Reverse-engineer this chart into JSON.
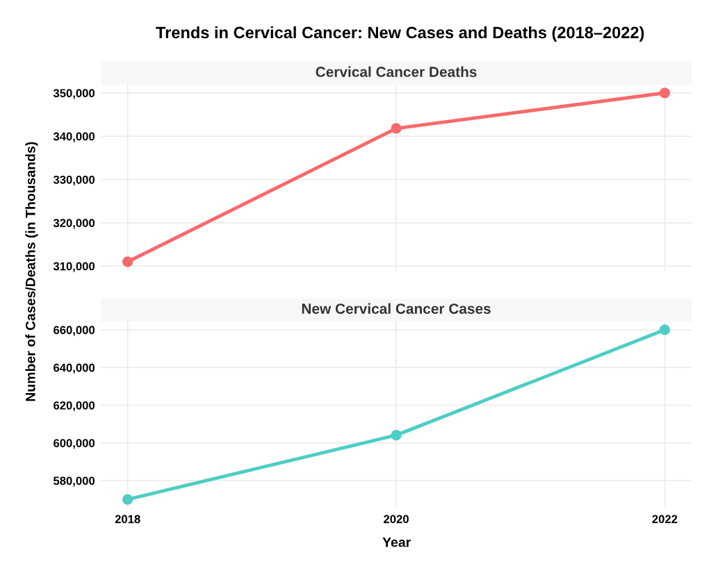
{
  "chart_data": [
    {
      "type": "line",
      "title": "Trends in Cervical Cancer: New Cases and Deaths (2018–2022)",
      "subtitle": "Cervical Cancer Deaths",
      "ylabel": "Number of Cases/Deaths (in Thousands)",
      "x": [
        2018,
        2020,
        2022
      ],
      "series": [
        {
          "color": "#f8696b",
          "values": [
            311000,
            341800,
            350000
          ]
        }
      ],
      "xlim": [
        2017.8,
        2022.2
      ],
      "xticks": [
        2018,
        2020,
        2022
      ],
      "ylim": [
        308900,
        351900
      ],
      "yticks": [
        {
          "value": 310000,
          "label": "310,000"
        },
        {
          "value": 320000,
          "label": "320,000"
        },
        {
          "value": 330000,
          "label": "330,000"
        },
        {
          "value": 340000,
          "label": "340,000"
        },
        {
          "value": 350000,
          "label": "350,000"
        }
      ],
      "tick_labels": "y",
      "grid": true,
      "marker": "circle",
      "line_style": "solid"
    },
    {
      "type": "line",
      "subtitle": "New Cervical Cancer Cases",
      "xlabel": "Year",
      "x": [
        2018,
        2020,
        2022
      ],
      "series": [
        {
          "color": "#4ecdc4",
          "values": [
            570000,
            604100,
            660000
          ]
        }
      ],
      "xlim": [
        2017.8,
        2022.2
      ],
      "xticks": [
        2018,
        2020,
        2022
      ],
      "ylim": [
        566000,
        664400
      ],
      "yticks": [
        {
          "value": 580000,
          "label": "580,000"
        },
        {
          "value": 600000,
          "label": "600,000"
        },
        {
          "value": 620000,
          "label": "620,000"
        },
        {
          "value": 640000,
          "label": "640,000"
        },
        {
          "value": 660000,
          "label": "660,000"
        }
      ],
      "grid": true,
      "marker": "circle",
      "line_style": "solid"
    }
  ]
}
